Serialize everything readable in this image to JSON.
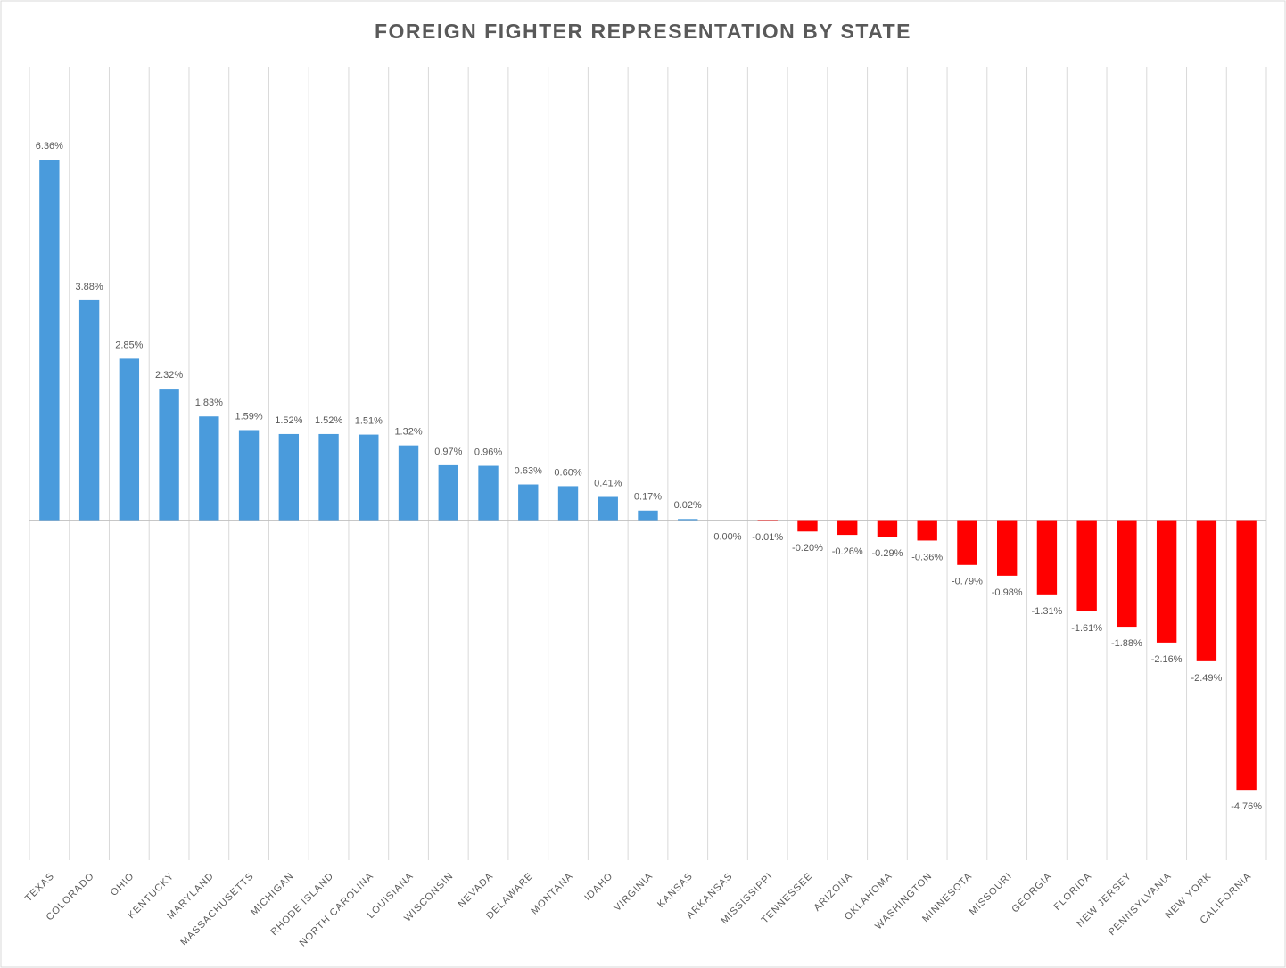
{
  "chart_data": {
    "type": "bar",
    "title": "FOREIGN FIGHTER REPRESENTATION BY STATE",
    "categories": [
      "TEXAS",
      "COLORADO",
      "OHIO",
      "KENTUCKY",
      "MARYLAND",
      "MASSACHUSETTS",
      "MICHIGAN",
      "RHODE ISLAND",
      "NORTH CAROLINA",
      "LOUISIANA",
      "WISCONSIN",
      "NEVADA",
      "DELAWARE",
      "MONTANA",
      "IDAHO",
      "VIRGINIA",
      "KANSAS",
      "ARKANSAS",
      "MISSISSIPPI",
      "TENNESSEE",
      "ARIZONA",
      "OKLAHOMA",
      "WASHINGTON",
      "MINNESOTA",
      "MISSOURI",
      "GEORGIA",
      "FLORIDA",
      "NEW JERSEY",
      "PENNSYLVANIA",
      "NEW YORK",
      "CALIFORNIA"
    ],
    "values": [
      6.36,
      3.88,
      2.85,
      2.32,
      1.83,
      1.59,
      1.52,
      1.52,
      1.51,
      1.32,
      0.97,
      0.96,
      0.63,
      0.6,
      0.41,
      0.17,
      0.02,
      0.0,
      -0.01,
      -0.2,
      -0.26,
      -0.29,
      -0.36,
      -0.79,
      -0.98,
      -1.31,
      -1.61,
      -1.88,
      -2.16,
      -2.49,
      -4.76
    ],
    "value_labels": [
      "6.36%",
      "3.88%",
      "2.85%",
      "2.32%",
      "1.83%",
      "1.59%",
      "1.52%",
      "1.52%",
      "1.51%",
      "1.32%",
      "0.97%",
      "0.96%",
      "0.63%",
      "0.60%",
      "0.41%",
      "0.17%",
      "0.02%",
      "0.00%",
      "-0.01%",
      "-0.20%",
      "-0.26%",
      "-0.29%",
      "-0.36%",
      "-0.79%",
      "-0.98%",
      "-1.31%",
      "-1.61%",
      "-1.88%",
      "-2.16%",
      "-2.49%",
      "-4.76%"
    ],
    "color": "#4a9bdc",
    "negative_color": "#ff0000",
    "ylim": [
      -6,
      8
    ],
    "grid": true
  }
}
